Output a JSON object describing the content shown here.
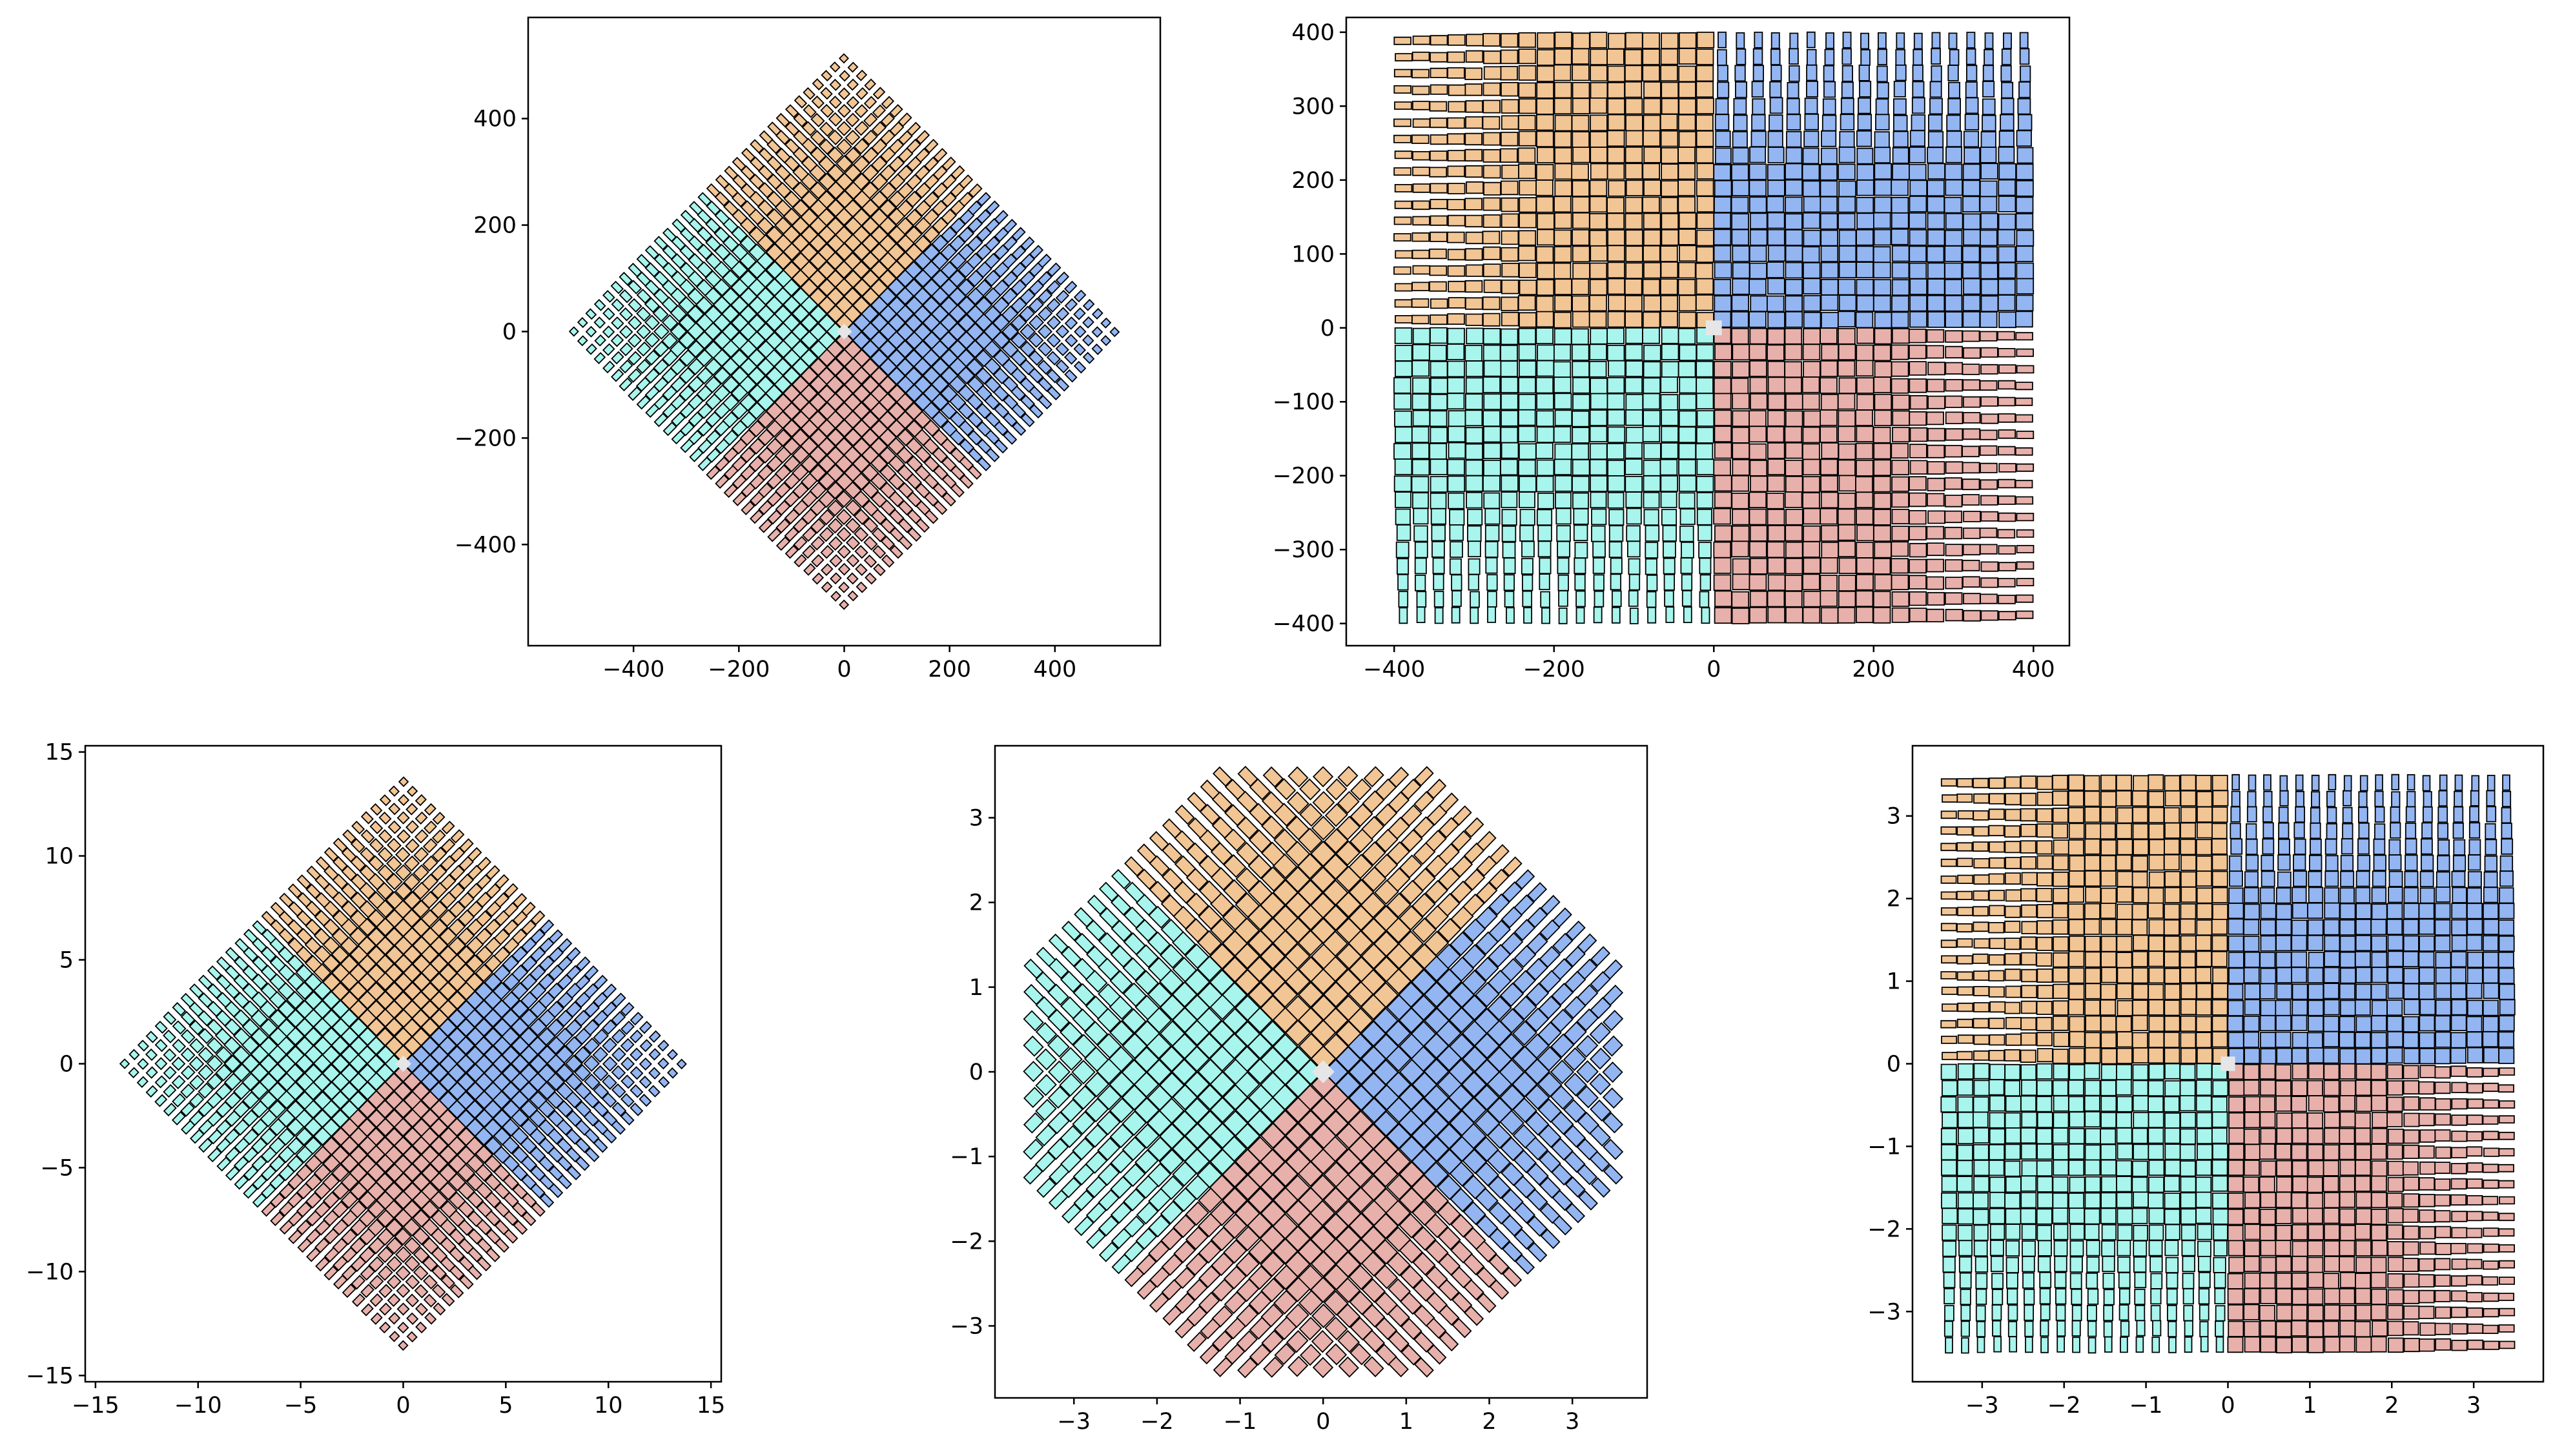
{
  "figure": {
    "description_type": "grid of five scatter-style cell plots",
    "colors": {
      "orange": "#F2C595",
      "blue": "#93B6F2",
      "red": "#E8B0AA",
      "cyan": "#A7F5EC",
      "gap": "#E6E6E6",
      "edge": "#000000"
    }
  },
  "chart_data": [
    {
      "type": "scatter",
      "title": "",
      "xlabel": "",
      "ylabel": "",
      "xlim": [
        -600,
        600
      ],
      "ylim": [
        -590,
        590
      ],
      "xticks": [
        -400,
        -200,
        0,
        200,
        400
      ],
      "xtick_labels": [
        "−400",
        "−200",
        "0",
        "200",
        "400"
      ],
      "yticks": [
        -400,
        -200,
        0,
        200,
        400
      ],
      "ytick_labels": [
        "−400",
        "−200",
        "0",
        "200",
        "400"
      ],
      "layout": "rotated-diamond",
      "extent": 530,
      "quadrants": [
        "orange (top)",
        "blue (right)",
        "red (bottom)",
        "cyan (left)"
      ]
    },
    {
      "type": "scatter",
      "title": "",
      "xlabel": "",
      "ylabel": "",
      "xlim": [
        -460,
        445
      ],
      "ylim": [
        -430,
        420
      ],
      "xticks": [
        -400,
        -200,
        0,
        200,
        400
      ],
      "xtick_labels": [
        "−400",
        "−200",
        "0",
        "200",
        "400"
      ],
      "yticks": [
        -400,
        -300,
        -200,
        -100,
        0,
        100,
        200,
        300,
        400
      ],
      "ytick_labels": [
        "−400",
        "−300",
        "−200",
        "−100",
        "0",
        "100",
        "200",
        "300",
        "400"
      ],
      "layout": "axis-aligned-square",
      "extent": 400,
      "quadrants": [
        "orange (top-left)",
        "blue (top-right)",
        "red (bottom-right)",
        "cyan (bottom-left)"
      ]
    },
    {
      "type": "scatter",
      "title": "",
      "xlabel": "",
      "ylabel": "",
      "xlim": [
        -15.5,
        15.5
      ],
      "ylim": [
        -15.3,
        15.3
      ],
      "xticks": [
        -15,
        -10,
        -5,
        0,
        5,
        10,
        15
      ],
      "xtick_labels": [
        "−15",
        "−10",
        "−5",
        "0",
        "5",
        "10",
        "15"
      ],
      "yticks": [
        -15,
        -10,
        -5,
        0,
        5,
        10,
        15
      ],
      "ytick_labels": [
        "−15",
        "−10",
        "−5",
        "0",
        "5",
        "10",
        "15"
      ],
      "layout": "rotated-diamond",
      "extent": 14,
      "quadrants": [
        "orange (top)",
        "blue (right)",
        "red (bottom)",
        "cyan (left)"
      ]
    },
    {
      "type": "scatter",
      "title": "",
      "xlabel": "",
      "ylabel": "",
      "xlim": [
        -3.95,
        3.9
      ],
      "ylim": [
        -3.85,
        3.85
      ],
      "xticks": [
        -3,
        -2,
        -1,
        0,
        1,
        2,
        3
      ],
      "xtick_labels": [
        "−3",
        "−2",
        "−1",
        "0",
        "1",
        "2",
        "3"
      ],
      "yticks": [
        -3,
        -2,
        -1,
        0,
        1,
        2,
        3
      ],
      "ytick_labels": [
        "−3",
        "−2",
        "−1",
        "0",
        "1",
        "2",
        "3"
      ],
      "layout": "diagonal-square",
      "extent": 3.5,
      "quadrants": [
        "orange (top triangle)",
        "blue (right triangle)",
        "red (bottom triangle)",
        "cyan (left triangle)"
      ]
    },
    {
      "type": "scatter",
      "title": "",
      "xlabel": "",
      "ylabel": "",
      "xlim": [
        -3.85,
        3.85
      ],
      "ylim": [
        -3.85,
        3.85
      ],
      "xticks": [
        -3,
        -2,
        -1,
        0,
        1,
        2,
        3
      ],
      "xtick_labels": [
        "−3",
        "−2",
        "−1",
        "0",
        "1",
        "2",
        "3"
      ],
      "yticks": [
        -3,
        -2,
        -1,
        0,
        1,
        2,
        3
      ],
      "ytick_labels": [
        "−3",
        "−2",
        "−1",
        "0",
        "1",
        "2",
        "3"
      ],
      "layout": "axis-aligned-square",
      "extent": 3.5,
      "quadrants": [
        "orange (top-left)",
        "blue (top-right)",
        "red (bottom-right)",
        "cyan (bottom-left)"
      ]
    }
  ]
}
